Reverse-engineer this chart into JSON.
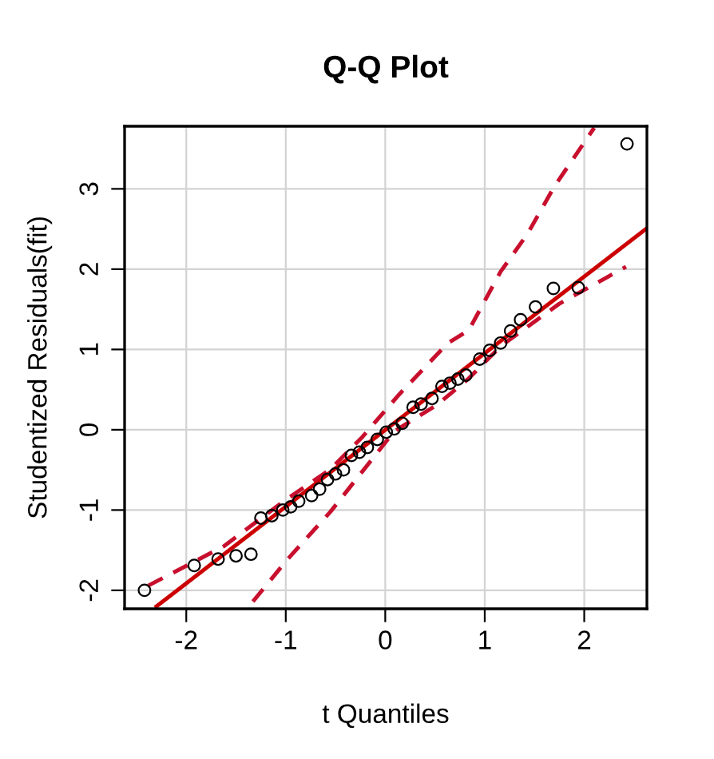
{
  "chart_data": {
    "type": "scatter",
    "title": "Q-Q Plot",
    "xlabel": "t Quantiles",
    "ylabel": "Studentized Residuals(fit)",
    "xlim": [
      -2.62,
      2.63
    ],
    "ylim": [
      -2.23,
      3.78
    ],
    "xticks": [
      -2,
      -1,
      0,
      1,
      2
    ],
    "yticks": [
      -2,
      -1,
      0,
      1,
      2,
      3
    ],
    "grid": true,
    "legend": false,
    "series": [
      {
        "marker": "circle",
        "color": "#000000",
        "x": [
          -2.42,
          -1.92,
          -1.68,
          -1.5,
          -1.35,
          -1.25,
          -1.14,
          -1.03,
          -0.95,
          -0.87,
          -0.74,
          -0.66,
          -0.58,
          -0.5,
          -0.42,
          -0.34,
          -0.26,
          -0.18,
          -0.08,
          0.01,
          0.09,
          0.17,
          0.28,
          0.36,
          0.47,
          0.57,
          0.65,
          0.73,
          0.81,
          0.95,
          1.05,
          1.16,
          1.26,
          1.36,
          1.51,
          1.69,
          1.94,
          2.43
        ],
        "values": [
          -2.0,
          -1.69,
          -1.61,
          -1.57,
          -1.55,
          -1.1,
          -1.07,
          -1.0,
          -0.96,
          -0.89,
          -0.82,
          -0.74,
          -0.62,
          -0.55,
          -0.5,
          -0.32,
          -0.28,
          -0.22,
          -0.12,
          -0.03,
          0.01,
          0.08,
          0.28,
          0.32,
          0.39,
          0.54,
          0.58,
          0.63,
          0.68,
          0.88,
          0.99,
          1.08,
          1.23,
          1.37,
          1.53,
          1.76,
          1.77,
          3.56
        ]
      },
      {
        "type": "line",
        "line_style": "solid",
        "color": "#cc0000",
        "x": [
          -2.3,
          2.63
        ],
        "values": [
          -2.2,
          2.51
        ]
      },
      {
        "type": "line",
        "line_style": "dashed",
        "color": "#c8102e",
        "x": [
          -2.38,
          -1.62,
          -1.03,
          -0.55,
          -0.23,
          0.14,
          0.63,
          0.84,
          1.16,
          1.43,
          1.7,
          2.1
        ],
        "values": [
          -1.94,
          -1.45,
          -0.9,
          -0.49,
          -0.09,
          0.44,
          1.08,
          1.24,
          1.97,
          2.44,
          3.03,
          3.76
        ]
      },
      {
        "type": "line",
        "line_style": "dashed",
        "color": "#c8102e",
        "x": [
          -1.33,
          -0.98,
          -0.55,
          -0.23,
          0.09,
          0.52,
          0.84,
          1.16,
          1.75,
          2.42
        ],
        "values": [
          -2.14,
          -1.61,
          -1.02,
          -0.52,
          -0.02,
          0.31,
          0.64,
          1.04,
          1.57,
          2.03
        ]
      }
    ]
  }
}
